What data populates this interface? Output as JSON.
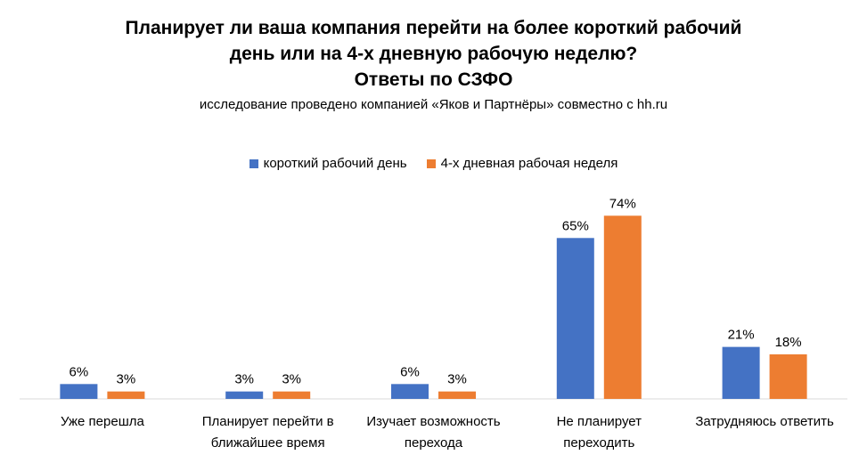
{
  "chart_data": {
    "type": "bar",
    "title_lines": [
      "Планирует ли ваша компания перейти на более короткий рабочий",
      "день или на 4-х дневную рабочую неделю?",
      "Ответы по СЗФО"
    ],
    "subtitle": "исследование проведено компанией «Яков и Партнёры» совместно с hh.ru",
    "categories": [
      [
        "Уже перешла"
      ],
      [
        "Планирует перейти в",
        "ближайшее время"
      ],
      [
        "Изучает возможность",
        "перехода"
      ],
      [
        "Не планирует",
        "переходить"
      ],
      [
        "Затрудняюсь ответить"
      ]
    ],
    "series": [
      {
        "name": "короткий рабочий день",
        "color": "#4472C4",
        "values": [
          6,
          3,
          6,
          65,
          21
        ],
        "labels": [
          "6%",
          "3%",
          "6%",
          "65%",
          "21%"
        ]
      },
      {
        "name": "4-х дневная рабочая неделя",
        "color": "#ED7D31",
        "values": [
          3,
          3,
          3,
          74,
          18
        ],
        "labels": [
          "3%",
          "3%",
          "3%",
          "74%",
          "18%"
        ]
      }
    ],
    "ylim": [
      0,
      100
    ],
    "grid": false,
    "legend_position": "top-center"
  }
}
